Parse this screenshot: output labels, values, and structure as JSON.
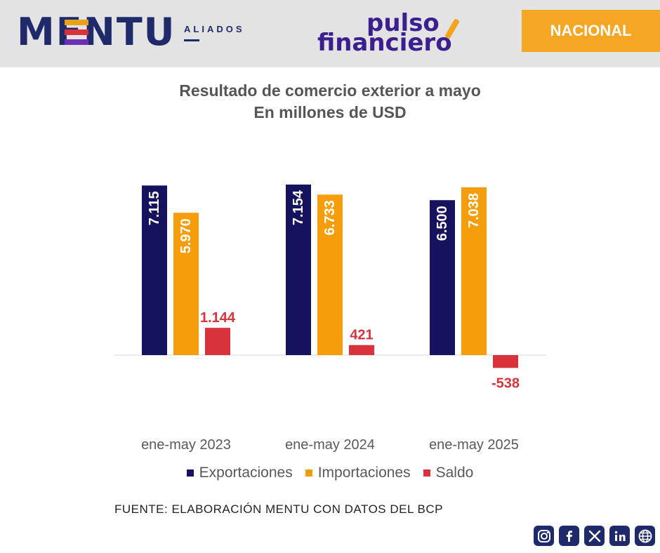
{
  "header": {
    "brand": "MENTU",
    "brand_sub": "ALIADOS",
    "partner_line1": "pulso",
    "partner_line2": "financiero",
    "section_badge": "NACIONAL"
  },
  "chart_data": {
    "type": "bar",
    "title": "Resultado de comercio exterior a mayo",
    "subtitle": "En millones de USD",
    "categories": [
      "ene-may 2023",
      "ene-may 2024",
      "ene-may 2025"
    ],
    "series": [
      {
        "name": "Exportaciones",
        "color": "#16125e",
        "values": [
          7115,
          7154,
          6500
        ],
        "labels": [
          "7.115",
          "7.154",
          "6.500"
        ]
      },
      {
        "name": "Importaciones",
        "color": "#f59d0a",
        "values": [
          5970,
          6733,
          7038
        ],
        "labels": [
          "5.970",
          "6.733",
          "7.038"
        ]
      },
      {
        "name": "Saldo",
        "color": "#d8333d",
        "values": [
          1144,
          421,
          -538
        ],
        "labels": [
          "1.144",
          "421",
          "-538"
        ]
      }
    ],
    "ylim": [
      -538,
      7154
    ],
    "grid": false,
    "legend": "bottom"
  },
  "footer": {
    "source": "FUENTE: ELABORACIÓN MENTU CON DATOS DEL BCP"
  },
  "social": [
    "instagram-icon",
    "facebook-icon",
    "x-icon",
    "linkedin-icon",
    "globe-icon"
  ]
}
